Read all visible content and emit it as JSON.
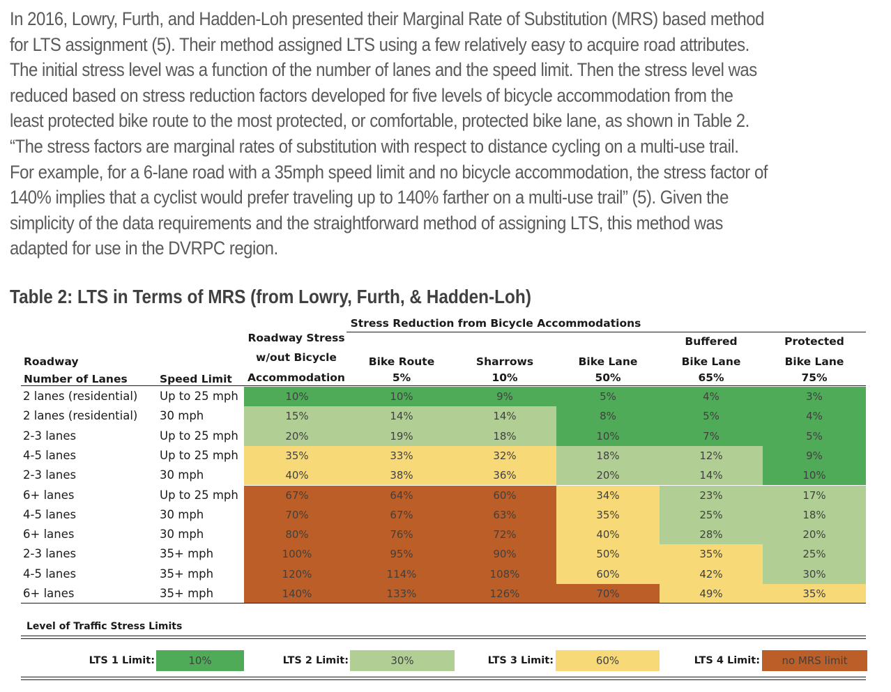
{
  "paragraph": [
    "In 2016, Lowry, Furth, and Hadden-Loh presented their Marginal Rate of Substitution (MRS) based method",
    "for LTS assignment (5). Their method assigned LTS using a few relatively easy to acquire road attributes.",
    "The initial stress level was a function of the number of lanes and the speed limit. Then the stress level was",
    "reduced based on stress reduction factors developed for five levels of bicycle accommodation from the",
    "least protected bike route to the most protected, or comfortable, protected bike lane, as shown in Table 2.",
    "“The stress factors are marginal rates of substitution with respect to distance cycling on a multi-use trail.",
    "For example, for a 6-lane road with a 35mph speed limit and no bicycle accommodation, the stress factor of",
    "140% implies that a cyclist would prefer traveling up to 140% farther on a multi-use trail” (5). Given the",
    "simplicity of the data requirements and the straightforward method of assigning LTS, this method was",
    "adapted for use in the DVRPC region."
  ],
  "table_title": "Table 2: LTS in Terms of MRS (from Lowry, Furth, & Hadden-Loh)",
  "table": {
    "group_header": "Stress Reduction from Bicycle Accommodations",
    "roadway_header": "Roadway",
    "lanes_header": "Number of Lanes",
    "speed_header": "Speed Limit",
    "stress_header": [
      "Roadway Stress",
      "w/out Bicycle",
      "Accommodation"
    ],
    "columns": [
      {
        "line1": "",
        "line2": "Bike Route",
        "pct": "5%"
      },
      {
        "line1": "",
        "line2": "Sharrows",
        "pct": "10%"
      },
      {
        "line1": "",
        "line2": "Bike Lane",
        "pct": "50%"
      },
      {
        "line1": "Buffered",
        "line2": "Bike Lane",
        "pct": "65%"
      },
      {
        "line1": "Protected",
        "line2": "Bike Lane",
        "pct": "75%"
      }
    ],
    "rows": [
      {
        "lanes": "2 lanes (residential)",
        "speed": "Up to 25 mph",
        "values": [
          "10%",
          "10%",
          "9%",
          "5%",
          "4%",
          "3%"
        ],
        "lts": [
          1,
          1,
          1,
          1,
          1,
          1
        ]
      },
      {
        "lanes": "2 lanes (residential)",
        "speed": "30 mph",
        "values": [
          "15%",
          "14%",
          "14%",
          "8%",
          "5%",
          "4%"
        ],
        "lts": [
          2,
          2,
          2,
          1,
          1,
          1
        ]
      },
      {
        "lanes": "2-3 lanes",
        "speed": "Up to 25 mph",
        "values": [
          "20%",
          "19%",
          "18%",
          "10%",
          "7%",
          "5%"
        ],
        "lts": [
          2,
          2,
          2,
          1,
          1,
          1
        ]
      },
      {
        "lanes": "4-5 lanes",
        "speed": "Up to 25 mph",
        "values": [
          "35%",
          "33%",
          "32%",
          "18%",
          "12%",
          "9%"
        ],
        "lts": [
          3,
          3,
          3,
          2,
          2,
          1
        ]
      },
      {
        "lanes": "2-3 lanes",
        "speed": "30 mph",
        "values": [
          "40%",
          "38%",
          "36%",
          "20%",
          "14%",
          "10%"
        ],
        "lts": [
          3,
          3,
          3,
          2,
          2,
          1
        ]
      },
      {
        "lanes": "6+ lanes",
        "speed": "Up to 25 mph",
        "values": [
          "67%",
          "64%",
          "60%",
          "34%",
          "23%",
          "17%"
        ],
        "lts": [
          4,
          4,
          4,
          3,
          2,
          2
        ]
      },
      {
        "lanes": "4-5 lanes",
        "speed": "30 mph",
        "values": [
          "70%",
          "67%",
          "63%",
          "35%",
          "25%",
          "18%"
        ],
        "lts": [
          4,
          4,
          4,
          3,
          2,
          2
        ]
      },
      {
        "lanes": "6+ lanes",
        "speed": "30 mph",
        "values": [
          "80%",
          "76%",
          "72%",
          "40%",
          "28%",
          "20%"
        ],
        "lts": [
          4,
          4,
          4,
          3,
          2,
          2
        ]
      },
      {
        "lanes": "2-3 lanes",
        "speed": "35+ mph",
        "values": [
          "100%",
          "95%",
          "90%",
          "50%",
          "35%",
          "25%"
        ],
        "lts": [
          4,
          4,
          4,
          3,
          3,
          2
        ]
      },
      {
        "lanes": "4-5 lanes",
        "speed": "35+ mph",
        "values": [
          "120%",
          "114%",
          "108%",
          "60%",
          "42%",
          "30%"
        ],
        "lts": [
          4,
          4,
          4,
          3,
          3,
          2
        ]
      },
      {
        "lanes": "6+ lanes",
        "speed": "35+ mph",
        "values": [
          "140%",
          "133%",
          "126%",
          "70%",
          "49%",
          "35%"
        ],
        "lts": [
          4,
          4,
          4,
          4,
          3,
          3
        ]
      }
    ]
  },
  "legend": {
    "title": "Level of Traffic Stress Limits",
    "items": [
      {
        "label": "LTS 1 Limit:",
        "value": "10%",
        "color": "#4fab58"
      },
      {
        "label": "LTS 2 Limit:",
        "value": "30%",
        "color": "#b1cf95"
      },
      {
        "label": "LTS 3 Limit:",
        "value": "60%",
        "color": "#f8d978"
      },
      {
        "label": "LTS 4 Limit:",
        "value": "no MRS limit",
        "color": "#bb5e27"
      }
    ]
  },
  "lts_colors": {
    "1": "#4fab58",
    "2": "#b1cf95",
    "3": "#f8d978",
    "4": "#bb5e27"
  }
}
